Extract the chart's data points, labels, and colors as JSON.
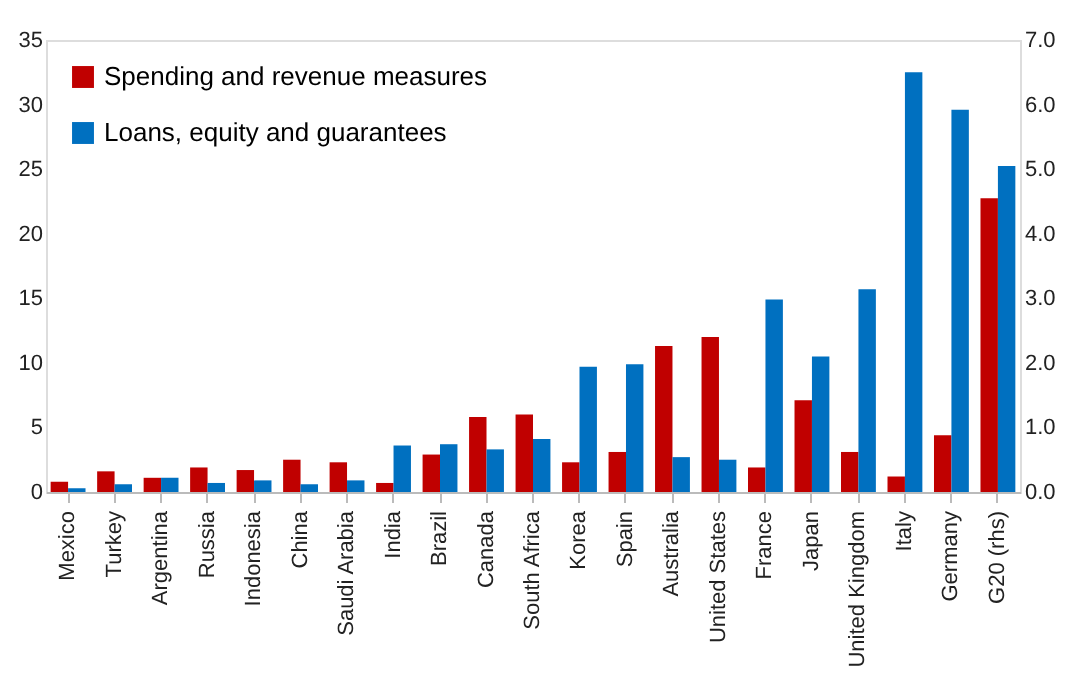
{
  "chart_data": {
    "type": "bar",
    "categories": [
      "Mexico",
      "Turkey",
      "Argentina",
      "Russia",
      "Indonesia",
      "China",
      "Saudi Arabia",
      "India",
      "Brazil",
      "Canada",
      "South Africa",
      "Korea",
      "Spain",
      "Australia",
      "United States",
      "France",
      "Japan",
      "United Kingdom",
      "Italy",
      "Germany",
      "G20 (rhs)"
    ],
    "series": [
      {
        "name": "Spending and revenue measures",
        "color": "#c00000",
        "values": [
          0.8,
          1.6,
          1.1,
          1.9,
          1.7,
          2.5,
          2.3,
          0.7,
          2.9,
          5.8,
          6.0,
          2.3,
          3.1,
          11.3,
          12.0,
          1.9,
          7.1,
          3.1,
          1.2,
          4.4,
          null
        ]
      },
      {
        "name": "Loans, equity and guarantees",
        "color": "#0070c0",
        "values": [
          0.3,
          0.6,
          1.1,
          0.7,
          0.9,
          0.6,
          0.9,
          3.6,
          3.7,
          3.3,
          4.1,
          9.7,
          9.9,
          2.7,
          2.5,
          14.9,
          10.5,
          15.7,
          32.5,
          29.6,
          null
        ]
      },
      {
        "color": "#c00000",
        "axis": "y2",
        "values": [
          null,
          null,
          null,
          null,
          null,
          null,
          null,
          null,
          null,
          null,
          null,
          null,
          null,
          null,
          null,
          null,
          null,
          null,
          null,
          null,
          4.55
        ]
      },
      {
        "color": "#0070c0",
        "axis": "y2",
        "values": [
          null,
          null,
          null,
          null,
          null,
          null,
          null,
          null,
          null,
          null,
          null,
          null,
          null,
          null,
          null,
          null,
          null,
          null,
          null,
          null,
          5.05
        ]
      }
    ],
    "ylim": [
      0,
      35
    ],
    "yticks": [
      0,
      5,
      10,
      15,
      20,
      25,
      30,
      35
    ],
    "y2lim": [
      0,
      7
    ],
    "y2ticks": [
      {
        "value": 0,
        "label": "0.0"
      },
      {
        "value": 1,
        "label": "1.0"
      },
      {
        "value": 2,
        "label": "2.0"
      },
      {
        "value": 3,
        "label": "3.0"
      },
      {
        "value": 4,
        "label": "4.0"
      },
      {
        "value": 5,
        "label": "5.0"
      },
      {
        "value": 6,
        "label": "6.0"
      },
      {
        "value": 7,
        "label": "7.0"
      }
    ],
    "grid": false,
    "legend": "top left"
  }
}
